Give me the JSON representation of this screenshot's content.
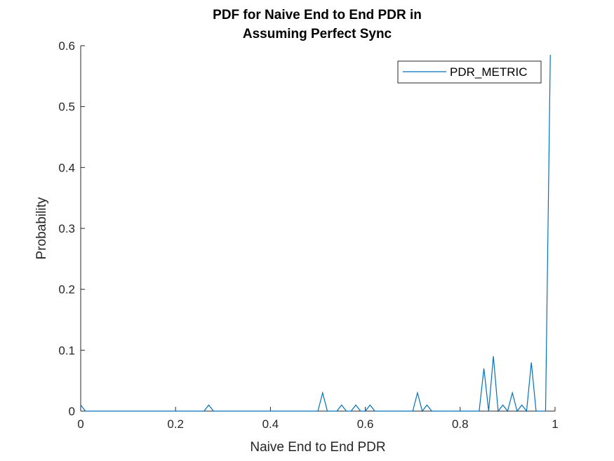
{
  "chart_data": {
    "type": "line",
    "title": [
      "PDF for Naive End to End PDR in",
      "Assuming Perfect Sync"
    ],
    "xlabel": "Naive End to End PDR",
    "ylabel": "Probability",
    "xlim": [
      0,
      1
    ],
    "ylim": [
      0,
      0.6
    ],
    "xticks": [
      0,
      0.2,
      0.4,
      0.6,
      0.8,
      1
    ],
    "xtick_labels": [
      "0",
      "0.2",
      "0.4",
      "0.6",
      "0.8",
      "1"
    ],
    "yticks": [
      0,
      0.1,
      0.2,
      0.3,
      0.4,
      0.5,
      0.6
    ],
    "ytick_labels": [
      "0",
      "0.1",
      "0.2",
      "0.3",
      "0.4",
      "0.5",
      "0.6"
    ],
    "grid": false,
    "legend_position": "top-right",
    "series": [
      {
        "name": "PDR_METRIC",
        "color": "#0072BD",
        "x": [
          0,
          0.01,
          0.02,
          0.26,
          0.27,
          0.28,
          0.5,
          0.51,
          0.52,
          0.54,
          0.55,
          0.56,
          0.57,
          0.58,
          0.59,
          0.6,
          0.61,
          0.62,
          0.7,
          0.71,
          0.72,
          0.73,
          0.74,
          0.84,
          0.85,
          0.86,
          0.87,
          0.88,
          0.89,
          0.9,
          0.91,
          0.92,
          0.93,
          0.94,
          0.95,
          0.96,
          0.97,
          0.98,
          0.99
        ],
        "y": [
          0.01,
          0,
          0,
          0,
          0.01,
          0,
          0,
          0.03,
          0,
          0,
          0.01,
          0,
          0,
          0.01,
          0,
          0,
          0.01,
          0,
          0,
          0.03,
          0,
          0.01,
          0,
          0,
          0.07,
          0,
          0.09,
          0,
          0.01,
          0,
          0.03,
          0,
          0.01,
          0,
          0.08,
          0,
          0,
          0,
          0.585
        ]
      }
    ]
  }
}
